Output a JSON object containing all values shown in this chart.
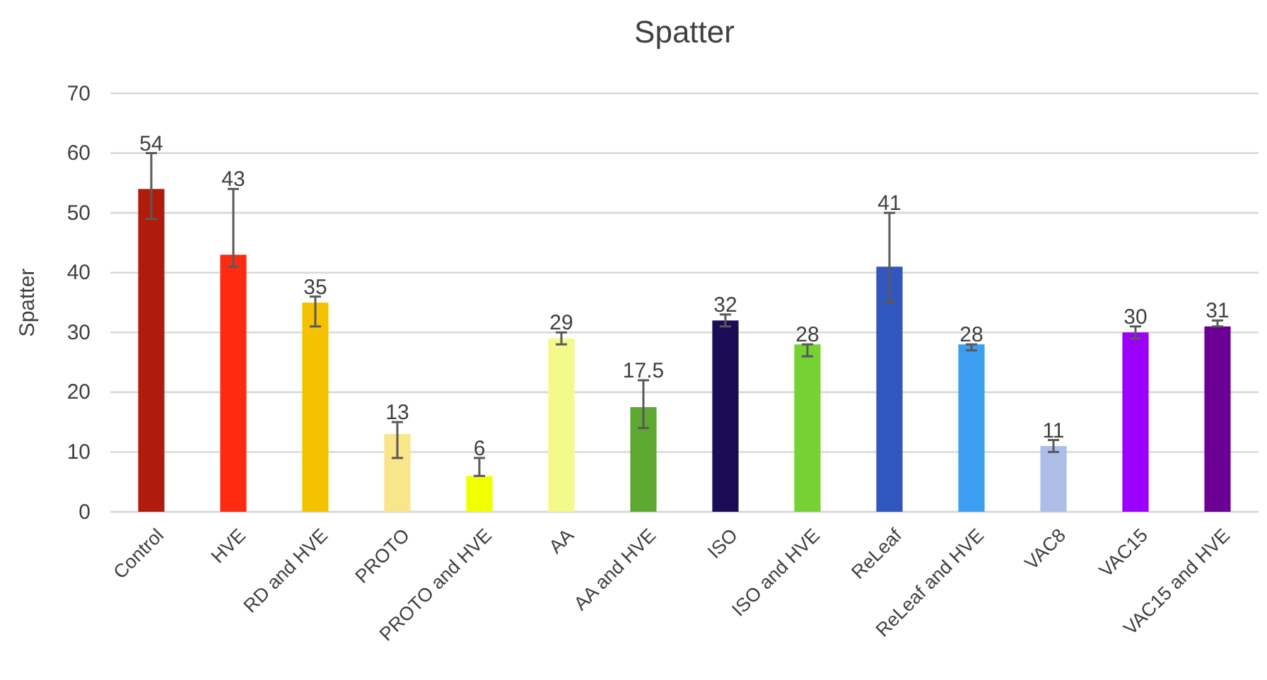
{
  "chart_data": {
    "type": "bar",
    "title": "Spatter",
    "ylabel": "Spatter",
    "categories": [
      "Control",
      "HVE",
      "RD and HVE",
      "PROTO",
      "PROTO and HVE",
      "AA",
      "AA and HVE",
      "ISO",
      "ISO and HVE",
      "ReLeaf",
      "ReLeaf and HVE",
      "VAC8",
      "VAC15",
      "VAC15 and HVE"
    ],
    "values": [
      54,
      43,
      35,
      13,
      6,
      29,
      17.5,
      32,
      28,
      41,
      28,
      11,
      30,
      31
    ],
    "errors": [
      [
        49,
        60
      ],
      [
        41,
        54
      ],
      [
        31,
        36
      ],
      [
        9,
        15
      ],
      [
        6,
        9
      ],
      [
        28,
        30
      ],
      [
        14,
        22
      ],
      [
        31,
        33
      ],
      [
        26,
        28
      ],
      [
        35,
        50
      ],
      [
        27,
        28
      ],
      [
        10,
        12
      ],
      [
        29,
        31
      ],
      [
        31,
        32
      ]
    ],
    "colors": [
      "#b01c0c",
      "#ff2a10",
      "#f5c200",
      "#f9e58a",
      "#f1ff00",
      "#f3f98a",
      "#5ea832",
      "#1b0d55",
      "#76d132",
      "#3156bd",
      "#3b9ef0",
      "#adbde8",
      "#9b00ff",
      "#6a0094"
    ],
    "ylim": [
      0,
      70
    ],
    "yticks": [
      0,
      10,
      20,
      30,
      40,
      50,
      60,
      70
    ],
    "grid": "y",
    "data_labels": true
  }
}
